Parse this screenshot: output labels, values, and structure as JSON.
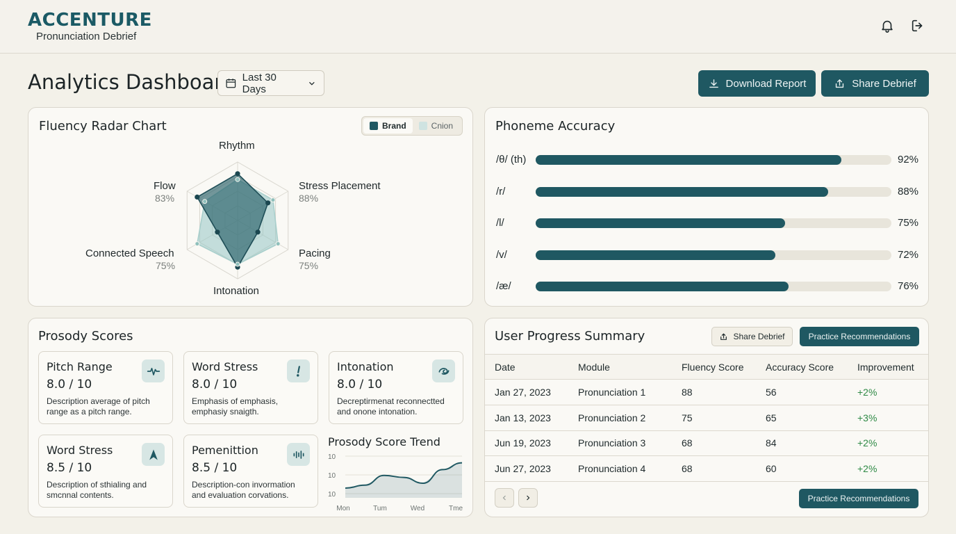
{
  "app": {
    "brand": "ACCENTURE",
    "subtitle": "Pronunciation Debrief"
  },
  "header": {
    "icons": [
      "bell-icon",
      "logout-icon"
    ]
  },
  "toolbar": {
    "page_title": "Analytics Dashboard",
    "date_range": "Last 30 Days",
    "download_label": "Download Report",
    "share_label": "Share Debrief"
  },
  "radar": {
    "title": "Fluency Radar Chart",
    "legend": {
      "brand": "Brand",
      "other": "Cnion"
    },
    "colors": {
      "brand": "#1f5862",
      "other": "#cfe3e1"
    }
  },
  "chart_data": {
    "type": "radar",
    "categories": [
      "Rhythm",
      "Stress Placement",
      "Pacing",
      "Intonation",
      "Connected Speech",
      "Flow"
    ],
    "category_values": [
      "",
      "88%",
      "75%",
      "",
      "75%",
      "83%"
    ],
    "series": [
      {
        "name": "Brand",
        "values": [
          0.8,
          0.6,
          0.4,
          0.8,
          0.4,
          0.8
        ]
      },
      {
        "name": "Cnion",
        "values": [
          0.7,
          0.7,
          0.8,
          0.75,
          0.8,
          0.65
        ]
      }
    ],
    "rmax": 1
  },
  "phoneme": {
    "title": "Phoneme Accuracy",
    "items": [
      {
        "label": "/θ/ (th)",
        "value": 92,
        "text": "92%"
      },
      {
        "label": "/r/",
        "value": 88,
        "text": "88%"
      },
      {
        "label": "/l/",
        "value": 75,
        "text": "75%"
      },
      {
        "label": "/v/",
        "value": 72,
        "text": "72%"
      },
      {
        "label": "/æ/",
        "value": 76,
        "text": "76%"
      }
    ]
  },
  "prosody": {
    "title": "Prosody Scores",
    "cards": [
      {
        "title": "Pitch Range",
        "score": "8.0 / 10",
        "desc": "Description average of pitch range as a pitch range.",
        "icon": "waveform-icon"
      },
      {
        "title": "Word Stress",
        "score": "8.0 / 10",
        "desc": "Emphasis of emphasis, emphasiy snaigth.",
        "icon": "exclamation-icon"
      },
      {
        "title": "Intonation",
        "score": "8.0 / 10",
        "desc": "Decreptirmenat reconnectted and onone intonation.",
        "icon": "swirl-icon"
      },
      {
        "title": "Word Stress",
        "score": "8.5 / 10",
        "desc": "Description of sthialing and smcnnal contents.",
        "icon": "arrow-peak-icon"
      },
      {
        "title": "Pemenittion",
        "score": "8.5 / 10",
        "desc": "Description-con invormation and evaluation corvations.",
        "icon": "audio-bars-icon"
      }
    ],
    "trend": {
      "title": "Prosody Score Trend",
      "y_ticks": [
        "10",
        "10",
        "10"
      ],
      "x_ticks": [
        "Mon",
        "Tum",
        "Wed",
        "Tme"
      ],
      "points": [
        2.0,
        2.6,
        4.6,
        4.2,
        3.0,
        5.8,
        7.2
      ]
    }
  },
  "progress": {
    "title": "User Progress Summary",
    "share_label": "Share Debrief",
    "practice_label": "Practice Recommendations",
    "columns": [
      "Date",
      "Module",
      "Fluency Score",
      "Accuracy Score",
      "Improvement"
    ],
    "rows": [
      [
        "Jan 27, 2023",
        "Pronunciation 1",
        "88",
        "56",
        "+2%"
      ],
      [
        "Jan 13, 2023",
        "Pronunciation 2",
        "75",
        "65",
        "+3%"
      ],
      [
        "Jun 19, 2023",
        "Pronunciation 3",
        "68",
        "84",
        "+2%"
      ],
      [
        "Jun 27, 2023",
        "Pronunciation 4",
        "68",
        "60",
        "+2%"
      ]
    ],
    "footer_button": "Practice Recommendations"
  }
}
